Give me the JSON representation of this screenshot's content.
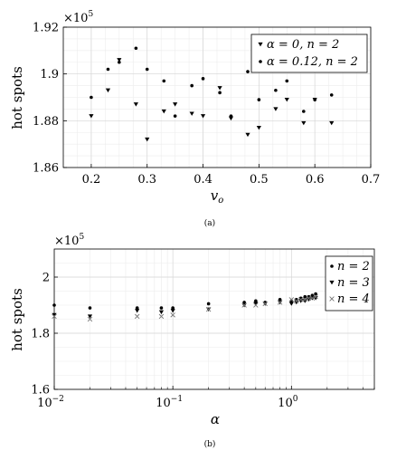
{
  "chart_data": [
    {
      "type": "scatter",
      "panel": "(a)",
      "xlabel": "v",
      "xlabel_sub": "o",
      "ylabel": "hot spots",
      "multiplier_base": "×10",
      "multiplier_exp": "5",
      "xlim": [
        0.15,
        0.7
      ],
      "ylim": [
        1.86,
        1.92
      ],
      "xticks": [
        0.2,
        0.3,
        0.4,
        0.5,
        0.6,
        0.7
      ],
      "xtick_labels": [
        "0.2",
        "0.3",
        "0.4",
        "0.5",
        "0.6",
        "0.7"
      ],
      "yticks": [
        1.86,
        1.88,
        1.9,
        1.92
      ],
      "ytick_labels": [
        "1.86",
        "1.88",
        "1.9",
        "1.92"
      ],
      "grid": true,
      "legend_position": "top-right",
      "series": [
        {
          "name": "α = 0, n = 2",
          "marker": "triangle-down",
          "x": [
            0.2,
            0.23,
            0.25,
            0.28,
            0.3,
            0.33,
            0.35,
            0.38,
            0.4,
            0.43,
            0.45,
            0.48,
            0.5,
            0.53,
            0.55,
            0.58,
            0.6,
            0.63
          ],
          "y": [
            1.882,
            1.893,
            1.906,
            1.887,
            1.872,
            1.884,
            1.887,
            1.883,
            1.882,
            1.894,
            1.881,
            1.874,
            1.877,
            1.885,
            1.889,
            1.879,
            1.889,
            1.879
          ]
        },
        {
          "name": "α = 0.12, n = 2",
          "marker": "dot",
          "x": [
            0.2,
            0.23,
            0.25,
            0.28,
            0.3,
            0.33,
            0.35,
            0.38,
            0.4,
            0.43,
            0.45,
            0.48,
            0.5,
            0.53,
            0.55,
            0.58,
            0.6,
            0.63
          ],
          "y": [
            1.89,
            1.902,
            1.905,
            1.911,
            1.902,
            1.897,
            1.882,
            1.895,
            1.898,
            1.892,
            1.882,
            1.901,
            1.889,
            1.893,
            1.897,
            1.884,
            1.889,
            1.891
          ]
        }
      ]
    },
    {
      "type": "scatter",
      "panel": "(b)",
      "xlabel": "α",
      "ylabel": "hot spots",
      "multiplier_base": "×10",
      "multiplier_exp": "5",
      "x_scale": "log",
      "xlim": [
        0.01,
        5
      ],
      "ylim": [
        1.6,
        2.1
      ],
      "xticks": [
        0.01,
        0.1,
        1
      ],
      "xtick_bases": [
        "10",
        "10",
        "10"
      ],
      "xtick_exps": [
        "−2",
        "−1",
        "0"
      ],
      "yticks": [
        1.6,
        1.8,
        2.0
      ],
      "ytick_labels": [
        "1.6",
        "1.8",
        "2"
      ],
      "grid": true,
      "legend_position": "top-right",
      "series": [
        {
          "name": "n = 2",
          "marker": "dot",
          "x": [
            0.01,
            0.02,
            0.05,
            0.08,
            0.1,
            0.2,
            0.4,
            0.5,
            0.6,
            0.8,
            1.0,
            1.1,
            1.2,
            1.3,
            1.4,
            1.5,
            1.6
          ],
          "y": [
            1.9,
            1.89,
            1.89,
            1.89,
            1.89,
            1.905,
            1.91,
            1.915,
            1.91,
            1.92,
            1.915,
            1.92,
            1.925,
            1.93,
            1.93,
            1.935,
            1.94
          ]
        },
        {
          "name": "n = 3",
          "marker": "triangle-down",
          "x": [
            0.01,
            0.02,
            0.05,
            0.08,
            0.1,
            0.2,
            0.4,
            0.5,
            0.6,
            0.8,
            1.0,
            1.1,
            1.2,
            1.3,
            1.4,
            1.5,
            1.6
          ],
          "y": [
            1.865,
            1.86,
            1.88,
            1.875,
            1.88,
            1.885,
            1.9,
            1.905,
            1.905,
            1.91,
            1.905,
            1.91,
            1.915,
            1.915,
            1.92,
            1.925,
            1.925
          ]
        },
        {
          "name": "n = 4",
          "marker": "x",
          "x": [
            0.01,
            0.02,
            0.05,
            0.08,
            0.1,
            0.2,
            0.4,
            0.5,
            0.6,
            0.8,
            1.0,
            1.1,
            1.2,
            1.3,
            1.4,
            1.5,
            1.6
          ],
          "y": [
            1.86,
            1.85,
            1.86,
            1.86,
            1.865,
            1.885,
            1.9,
            1.9,
            1.905,
            1.91,
            1.92,
            1.915,
            1.92,
            1.92,
            1.925,
            1.925,
            1.93
          ]
        }
      ]
    }
  ]
}
